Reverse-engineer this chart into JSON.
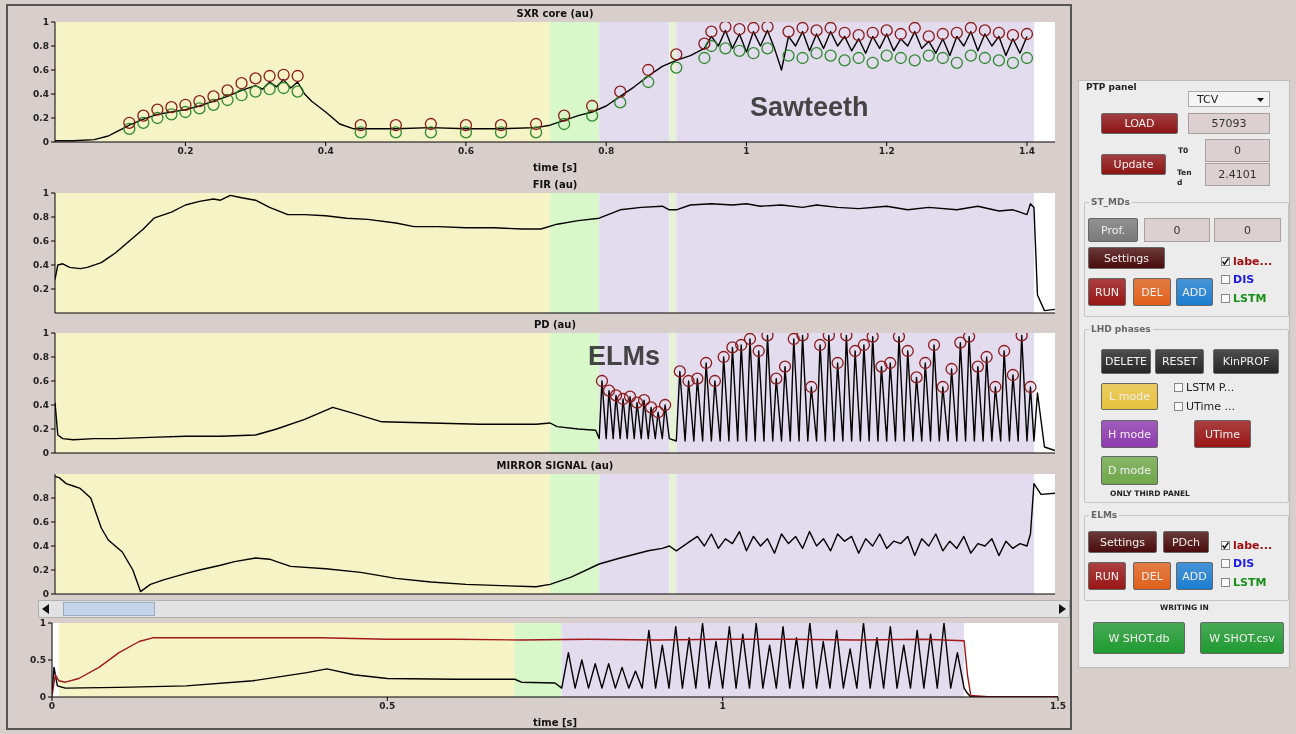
{
  "chart_data": [
    {
      "type": "line",
      "title": "SXR core (au)",
      "xlabel": "time [s]",
      "xlim": [
        0.014,
        1.44
      ],
      "xticks": [
        0.2,
        0.4,
        0.6,
        0.8,
        1,
        1.2,
        1.4
      ],
      "ylim": [
        0,
        1
      ],
      "yticks": [
        0,
        0.2,
        0.4,
        0.6,
        0.8,
        1
      ],
      "bands": [
        {
          "axis": "x",
          "from": 0.014,
          "to": 0.72,
          "color": "#f6f4c6"
        },
        {
          "axis": "x",
          "from": 0.72,
          "to": 0.79,
          "color": "#d9f8c9"
        },
        {
          "axis": "x",
          "from": 0.79,
          "to": 0.89,
          "color": "#e3dbee"
        },
        {
          "axis": "x",
          "from": 0.89,
          "to": 0.9,
          "color": "#e6f2d6"
        },
        {
          "axis": "x",
          "from": 0.9,
          "to": 1.41,
          "color": "#e3dbee"
        }
      ],
      "series": [
        {
          "type": "line",
          "color": "#000000",
          "marker": "none",
          "x": [
            0.014,
            0.04,
            0.07,
            0.09,
            0.1,
            0.11,
            0.12,
            0.14,
            0.16,
            0.18,
            0.2,
            0.22,
            0.24,
            0.26,
            0.28,
            0.3,
            0.31,
            0.32,
            0.33,
            0.34,
            0.35,
            0.36,
            0.37,
            0.38,
            0.4,
            0.42,
            0.44,
            0.5,
            0.55,
            0.6,
            0.65,
            0.7,
            0.72,
            0.74,
            0.76,
            0.78,
            0.8,
            0.82,
            0.84,
            0.86,
            0.88,
            0.9,
            0.92,
            0.94,
            0.95,
            0.96,
            0.97,
            0.98,
            0.99,
            1.0,
            1.01,
            1.02,
            1.03,
            1.04,
            1.05,
            1.06,
            1.07,
            1.08,
            1.09,
            1.1,
            1.11,
            1.12,
            1.13,
            1.14,
            1.15,
            1.16,
            1.17,
            1.18,
            1.19,
            1.2,
            1.21,
            1.22,
            1.23,
            1.24,
            1.25,
            1.26,
            1.27,
            1.28,
            1.29,
            1.3,
            1.31,
            1.32,
            1.33,
            1.34,
            1.35,
            1.36,
            1.37,
            1.38,
            1.39,
            1.4
          ],
          "values": [
            0.01,
            0.01,
            0.02,
            0.05,
            0.08,
            0.11,
            0.14,
            0.19,
            0.23,
            0.25,
            0.27,
            0.3,
            0.34,
            0.38,
            0.43,
            0.47,
            0.44,
            0.5,
            0.46,
            0.52,
            0.45,
            0.5,
            0.4,
            0.34,
            0.25,
            0.15,
            0.11,
            0.11,
            0.12,
            0.11,
            0.11,
            0.12,
            0.14,
            0.18,
            0.22,
            0.25,
            0.3,
            0.38,
            0.46,
            0.55,
            0.63,
            0.68,
            0.72,
            0.78,
            0.88,
            0.8,
            0.93,
            0.78,
            0.9,
            0.75,
            0.92,
            0.8,
            0.93,
            0.78,
            0.6,
            0.88,
            0.8,
            0.92,
            0.76,
            0.9,
            0.78,
            0.92,
            0.8,
            0.88,
            0.76,
            0.86,
            0.74,
            0.88,
            0.78,
            0.9,
            0.76,
            0.86,
            0.8,
            0.92,
            0.78,
            0.84,
            0.74,
            0.86,
            0.72,
            0.88,
            0.8,
            0.92,
            0.76,
            0.9,
            0.8,
            0.88,
            0.72,
            0.86,
            0.74,
            0.88
          ]
        },
        {
          "type": "scatter",
          "color": "#2e8b2e",
          "marker": "circle",
          "x": [
            0.12,
            0.14,
            0.16,
            0.18,
            0.2,
            0.22,
            0.24,
            0.26,
            0.28,
            0.3,
            0.32,
            0.34,
            0.36,
            0.45,
            0.5,
            0.55,
            0.6,
            0.65,
            0.7,
            0.74,
            0.78,
            0.82,
            0.86,
            0.9,
            0.94,
            0.95,
            0.97,
            0.99,
            1.01,
            1.03,
            1.06,
            1.08,
            1.1,
            1.12,
            1.14,
            1.16,
            1.18,
            1.2,
            1.22,
            1.24,
            1.26,
            1.28,
            1.3,
            1.32,
            1.34,
            1.36,
            1.38,
            1.4
          ],
          "values": [
            0.11,
            0.16,
            0.2,
            0.23,
            0.25,
            0.28,
            0.31,
            0.35,
            0.39,
            0.42,
            0.44,
            0.45,
            0.42,
            0.08,
            0.08,
            0.08,
            0.08,
            0.08,
            0.08,
            0.15,
            0.22,
            0.33,
            0.5,
            0.62,
            0.7,
            0.8,
            0.78,
            0.76,
            0.74,
            0.78,
            0.72,
            0.7,
            0.74,
            0.72,
            0.68,
            0.7,
            0.66,
            0.72,
            0.7,
            0.68,
            0.72,
            0.7,
            0.66,
            0.72,
            0.7,
            0.68,
            0.66,
            0.7
          ]
        },
        {
          "type": "scatter",
          "color": "#8b1a1a",
          "marker": "circle",
          "x": [
            0.12,
            0.14,
            0.16,
            0.18,
            0.2,
            0.22,
            0.24,
            0.26,
            0.28,
            0.3,
            0.32,
            0.34,
            0.36,
            0.45,
            0.5,
            0.55,
            0.6,
            0.65,
            0.7,
            0.74,
            0.78,
            0.82,
            0.86,
            0.9,
            0.94,
            0.95,
            0.97,
            0.99,
            1.01,
            1.03,
            1.06,
            1.08,
            1.1,
            1.12,
            1.14,
            1.16,
            1.18,
            1.2,
            1.22,
            1.24,
            1.26,
            1.28,
            1.3,
            1.32,
            1.34,
            1.36,
            1.38,
            1.4
          ],
          "values": [
            0.16,
            0.22,
            0.27,
            0.29,
            0.31,
            0.34,
            0.38,
            0.43,
            0.49,
            0.53,
            0.55,
            0.56,
            0.55,
            0.14,
            0.14,
            0.15,
            0.14,
            0.14,
            0.15,
            0.22,
            0.3,
            0.42,
            0.6,
            0.73,
            0.82,
            0.92,
            0.96,
            0.94,
            0.95,
            0.96,
            0.92,
            0.95,
            0.93,
            0.95,
            0.91,
            0.89,
            0.91,
            0.93,
            0.9,
            0.95,
            0.88,
            0.9,
            0.91,
            0.95,
            0.93,
            0.91,
            0.89,
            0.9
          ]
        }
      ],
      "annotations": [
        "Sawteeth"
      ]
    },
    {
      "type": "line",
      "title": "FIR (au)",
      "xlim": [
        0.014,
        1.44
      ],
      "ylim": [
        0,
        1
      ],
      "yticks": [
        0.2,
        0.4,
        0.6,
        0.8,
        1
      ],
      "tick_labels": "y",
      "bands": [
        {
          "axis": "x",
          "from": 0.014,
          "to": 0.72,
          "color": "#f6f4c6"
        },
        {
          "axis": "x",
          "from": 0.72,
          "to": 0.79,
          "color": "#d9f8c9"
        },
        {
          "axis": "x",
          "from": 0.79,
          "to": 0.89,
          "color": "#e3dbee"
        },
        {
          "axis": "x",
          "from": 0.89,
          "to": 0.9,
          "color": "#e6f2d6"
        },
        {
          "axis": "x",
          "from": 0.9,
          "to": 1.41,
          "color": "#e3dbee"
        }
      ],
      "series": [
        {
          "type": "line",
          "color": "#000000",
          "marker": "none",
          "x": [
            0.014,
            0.018,
            0.025,
            0.035,
            0.05,
            0.06,
            0.08,
            0.1,
            0.12,
            0.14,
            0.155,
            0.18,
            0.2,
            0.22,
            0.24,
            0.25,
            0.264,
            0.28,
            0.3,
            0.32,
            0.346,
            0.37,
            0.4,
            0.43,
            0.46,
            0.5,
            0.526,
            0.56,
            0.6,
            0.64,
            0.68,
            0.707,
            0.73,
            0.76,
            0.79,
            0.82,
            0.85,
            0.88,
            0.89,
            0.9,
            0.92,
            0.95,
            0.98,
            1.0,
            1.02,
            1.05,
            1.08,
            1.1,
            1.13,
            1.16,
            1.2,
            1.23,
            1.26,
            1.3,
            1.33,
            1.36,
            1.38,
            1.4,
            1.405,
            1.41,
            1.415,
            1.425,
            1.44
          ],
          "values": [
            0.28,
            0.4,
            0.41,
            0.38,
            0.37,
            0.38,
            0.42,
            0.5,
            0.6,
            0.7,
            0.79,
            0.84,
            0.9,
            0.93,
            0.95,
            0.94,
            0.98,
            0.96,
            0.94,
            0.88,
            0.82,
            0.82,
            0.81,
            0.79,
            0.78,
            0.75,
            0.72,
            0.72,
            0.71,
            0.71,
            0.7,
            0.7,
            0.74,
            0.77,
            0.79,
            0.86,
            0.88,
            0.89,
            0.86,
            0.86,
            0.9,
            0.91,
            0.9,
            0.91,
            0.89,
            0.9,
            0.88,
            0.9,
            0.88,
            0.87,
            0.89,
            0.86,
            0.88,
            0.86,
            0.89,
            0.85,
            0.86,
            0.82,
            0.91,
            0.88,
            0.15,
            0.02,
            0.03
          ]
        }
      ]
    },
    {
      "type": "line",
      "title": "PD (au)",
      "xlim": [
        0.014,
        1.44
      ],
      "ylim": [
        0,
        1
      ],
      "yticks": [
        0,
        0.2,
        0.4,
        0.6,
        0.8,
        1
      ],
      "tick_labels": "y",
      "bands": [
        {
          "axis": "x",
          "from": 0.014,
          "to": 0.72,
          "color": "#f6f4c6"
        },
        {
          "axis": "x",
          "from": 0.72,
          "to": 0.79,
          "color": "#d9f8c9"
        },
        {
          "axis": "x",
          "from": 0.79,
          "to": 0.89,
          "color": "#e3dbee"
        },
        {
          "axis": "x",
          "from": 0.89,
          "to": 0.9,
          "color": "#e6f2d6"
        },
        {
          "axis": "x",
          "from": 0.9,
          "to": 1.41,
          "color": "#e3dbee"
        }
      ],
      "series": [
        {
          "type": "line",
          "color": "#000000",
          "marker": "none",
          "x": [
            0.014,
            0.018,
            0.025,
            0.04,
            0.07,
            0.1,
            0.15,
            0.2,
            0.25,
            0.3,
            0.33,
            0.37,
            0.41,
            0.44,
            0.48,
            0.55,
            0.62,
            0.7,
            0.72,
            0.73,
            0.76,
            0.785,
            0.79,
            0.794,
            0.8,
            0.804,
            0.81,
            0.814,
            0.82,
            0.824,
            0.83,
            0.834,
            0.84,
            0.844,
            0.85,
            0.854,
            0.86,
            0.864,
            0.87,
            0.874,
            0.88,
            0.884,
            0.89,
            0.9,
            0.905,
            0.9125,
            0.9175,
            0.925,
            0.93,
            0.9375,
            0.9425,
            0.95,
            0.955,
            0.9625,
            0.9675,
            0.975,
            0.98,
            0.9875,
            0.9925,
            1.0,
            1.005,
            1.0125,
            1.0175,
            1.025,
            1.03,
            1.0375,
            1.0425,
            1.05,
            1.055,
            1.0625,
            1.0675,
            1.075,
            1.08,
            1.0875,
            1.0925,
            1.1,
            1.105,
            1.1125,
            1.1175,
            1.125,
            1.13,
            1.1375,
            1.1425,
            1.15,
            1.155,
            1.1625,
            1.1675,
            1.175,
            1.18,
            1.1875,
            1.1925,
            1.2,
            1.205,
            1.2125,
            1.2175,
            1.225,
            1.23,
            1.2375,
            1.2425,
            1.25,
            1.255,
            1.2625,
            1.2675,
            1.275,
            1.28,
            1.2875,
            1.2925,
            1.3,
            1.305,
            1.3125,
            1.3175,
            1.325,
            1.33,
            1.3375,
            1.3425,
            1.35,
            1.355,
            1.3625,
            1.3675,
            1.375,
            1.38,
            1.3875,
            1.3925,
            1.4,
            1.405,
            1.41,
            1.415,
            1.425,
            1.44
          ],
          "values": [
            0.42,
            0.15,
            0.12,
            0.11,
            0.12,
            0.12,
            0.13,
            0.14,
            0.14,
            0.15,
            0.2,
            0.28,
            0.38,
            0.33,
            0.26,
            0.25,
            0.24,
            0.24,
            0.25,
            0.22,
            0.2,
            0.19,
            0.12,
            0.6,
            0.12,
            0.52,
            0.12,
            0.48,
            0.12,
            0.45,
            0.12,
            0.47,
            0.12,
            0.42,
            0.12,
            0.44,
            0.12,
            0.38,
            0.12,
            0.34,
            0.12,
            0.4,
            0.12,
            0.1,
            0.68,
            0.1,
            0.6,
            0.1,
            0.62,
            0.1,
            0.75,
            0.1,
            0.6,
            0.1,
            0.8,
            0.1,
            0.88,
            0.1,
            0.9,
            0.1,
            0.95,
            0.1,
            0.85,
            0.1,
            0.98,
            0.1,
            0.62,
            0.1,
            0.72,
            0.1,
            0.95,
            0.1,
            0.98,
            0.1,
            0.55,
            0.1,
            0.9,
            0.1,
            0.98,
            0.1,
            0.75,
            0.1,
            0.98,
            0.1,
            0.85,
            0.1,
            0.9,
            0.1,
            0.97,
            0.1,
            0.72,
            0.1,
            0.75,
            0.1,
            0.97,
            0.1,
            0.85,
            0.1,
            0.63,
            0.1,
            0.75,
            0.1,
            0.9,
            0.1,
            0.55,
            0.1,
            0.7,
            0.1,
            0.92,
            0.1,
            0.97,
            0.1,
            0.72,
            0.1,
            0.8,
            0.1,
            0.55,
            0.1,
            0.85,
            0.1,
            0.65,
            0.1,
            0.98,
            0.1,
            0.55,
            0.1,
            0.5,
            0.05,
            0.02
          ]
        },
        {
          "type": "scatter",
          "color": "#8b1a1a",
          "marker": "circle",
          "x": [
            0.794,
            0.804,
            0.814,
            0.824,
            0.834,
            0.844,
            0.854,
            0.864,
            0.874,
            0.884,
            0.905,
            0.9175,
            0.93,
            0.9425,
            0.955,
            0.9675,
            0.98,
            0.9925,
            1.005,
            1.0175,
            1.03,
            1.0425,
            1.055,
            1.0675,
            1.08,
            1.0925,
            1.105,
            1.1175,
            1.13,
            1.1425,
            1.155,
            1.1675,
            1.18,
            1.1925,
            1.205,
            1.2175,
            1.23,
            1.2425,
            1.255,
            1.2675,
            1.28,
            1.2925,
            1.305,
            1.3175,
            1.33,
            1.3425,
            1.355,
            1.3675,
            1.38,
            1.3925,
            1.405
          ],
          "values": [
            0.6,
            0.52,
            0.48,
            0.45,
            0.47,
            0.42,
            0.44,
            0.38,
            0.34,
            0.4,
            0.68,
            0.6,
            0.62,
            0.75,
            0.6,
            0.8,
            0.88,
            0.9,
            0.95,
            0.85,
            0.98,
            0.62,
            0.72,
            0.95,
            0.98,
            0.55,
            0.9,
            0.98,
            0.75,
            0.98,
            0.85,
            0.9,
            0.97,
            0.72,
            0.75,
            0.97,
            0.85,
            0.63,
            0.75,
            0.9,
            0.55,
            0.7,
            0.92,
            0.97,
            0.72,
            0.8,
            0.55,
            0.85,
            0.65,
            0.98,
            0.55
          ]
        }
      ],
      "annotations": [
        "ELMs"
      ]
    },
    {
      "type": "line",
      "title": "MIRROR SIGNAL (au)",
      "xlim": [
        0.014,
        1.44
      ],
      "ylim": [
        0,
        1
      ],
      "yticks": [
        0,
        0.2,
        0.4,
        0.6,
        0.8
      ],
      "tick_labels": "y",
      "bands": [
        {
          "axis": "x",
          "from": 0.014,
          "to": 0.72,
          "color": "#f6f4c6"
        },
        {
          "axis": "x",
          "from": 0.72,
          "to": 0.79,
          "color": "#d9f8c9"
        },
        {
          "axis": "x",
          "from": 0.79,
          "to": 0.89,
          "color": "#e3dbee"
        },
        {
          "axis": "x",
          "from": 0.89,
          "to": 0.9,
          "color": "#e6f2d6"
        },
        {
          "axis": "x",
          "from": 0.9,
          "to": 1.41,
          "color": "#e3dbee"
        }
      ],
      "series": [
        {
          "type": "line",
          "color": "#000000",
          "marker": "none",
          "x": [
            0.014,
            0.02,
            0.03,
            0.04,
            0.05,
            0.065,
            0.08,
            0.09,
            0.1,
            0.11,
            0.125,
            0.136,
            0.15,
            0.17,
            0.2,
            0.22,
            0.25,
            0.27,
            0.3,
            0.32,
            0.33,
            0.35,
            0.4,
            0.45,
            0.5,
            0.55,
            0.6,
            0.65,
            0.7,
            0.72,
            0.75,
            0.79,
            0.82,
            0.86,
            0.88,
            0.89,
            0.9,
            0.92,
            0.93,
            0.94,
            0.95,
            0.96,
            0.97,
            0.98,
            0.99,
            1.0,
            1.01,
            1.02,
            1.03,
            1.04,
            1.05,
            1.06,
            1.07,
            1.08,
            1.09,
            1.1,
            1.11,
            1.12,
            1.13,
            1.14,
            1.15,
            1.16,
            1.17,
            1.18,
            1.19,
            1.2,
            1.21,
            1.22,
            1.23,
            1.24,
            1.25,
            1.26,
            1.27,
            1.28,
            1.29,
            1.3,
            1.31,
            1.32,
            1.33,
            1.34,
            1.35,
            1.36,
            1.37,
            1.38,
            1.39,
            1.4,
            1.405,
            1.41,
            1.42,
            1.44
          ],
          "values": [
            0.98,
            0.97,
            0.92,
            0.9,
            0.88,
            0.8,
            0.55,
            0.45,
            0.4,
            0.35,
            0.2,
            0.02,
            0.08,
            0.12,
            0.17,
            0.2,
            0.24,
            0.27,
            0.3,
            0.29,
            0.27,
            0.23,
            0.21,
            0.18,
            0.13,
            0.1,
            0.08,
            0.07,
            0.06,
            0.08,
            0.14,
            0.25,
            0.3,
            0.36,
            0.38,
            0.4,
            0.36,
            0.44,
            0.48,
            0.4,
            0.5,
            0.38,
            0.46,
            0.42,
            0.52,
            0.36,
            0.48,
            0.4,
            0.46,
            0.34,
            0.5,
            0.42,
            0.48,
            0.38,
            0.52,
            0.4,
            0.46,
            0.36,
            0.5,
            0.44,
            0.48,
            0.34,
            0.46,
            0.4,
            0.5,
            0.38,
            0.44,
            0.42,
            0.48,
            0.32,
            0.46,
            0.4,
            0.5,
            0.36,
            0.44,
            0.38,
            0.48,
            0.34,
            0.42,
            0.4,
            0.46,
            0.32,
            0.44,
            0.38,
            0.42,
            0.4,
            0.5,
            0.92,
            0.83,
            0.84
          ]
        }
      ]
    },
    {
      "type": "line",
      "xlabel": "time [s]",
      "xlim": [
        0,
        1.5
      ],
      "xticks": [
        0,
        0.5,
        1,
        1.5
      ],
      "ylim": [
        0,
        1
      ],
      "yticks": [
        0,
        0.5,
        1
      ],
      "bands": [
        {
          "axis": "x",
          "from": 0.01,
          "to": 0.69,
          "color": "#f6f4c6"
        },
        {
          "axis": "x",
          "from": 0.69,
          "to": 0.76,
          "color": "#d9f8c9"
        },
        {
          "axis": "x",
          "from": 0.76,
          "to": 1.36,
          "color": "#e3dbee"
        }
      ],
      "series": [
        {
          "type": "line",
          "color": "#000000",
          "marker": "none",
          "x": [
            0,
            0.003,
            0.008,
            0.02,
            0.1,
            0.2,
            0.3,
            0.38,
            0.41,
            0.45,
            0.5,
            0.6,
            0.69,
            0.7,
            0.75,
            0.76,
            0.77,
            0.78,
            0.79,
            0.8,
            0.81,
            0.82,
            0.83,
            0.84,
            0.85,
            0.86,
            0.87,
            0.88,
            0.89,
            0.9,
            0.91,
            0.92,
            0.93,
            0.94,
            0.95,
            0.96,
            0.97,
            0.98,
            0.99,
            1.0,
            1.01,
            1.02,
            1.03,
            1.04,
            1.05,
            1.06,
            1.07,
            1.08,
            1.09,
            1.1,
            1.11,
            1.12,
            1.13,
            1.14,
            1.15,
            1.16,
            1.17,
            1.18,
            1.19,
            1.2,
            1.21,
            1.22,
            1.23,
            1.24,
            1.25,
            1.26,
            1.27,
            1.28,
            1.29,
            1.3,
            1.31,
            1.32,
            1.33,
            1.34,
            1.35,
            1.36,
            1.365,
            1.37,
            1.5
          ],
          "values": [
            0.05,
            0.4,
            0.15,
            0.12,
            0.13,
            0.15,
            0.22,
            0.33,
            0.38,
            0.3,
            0.25,
            0.24,
            0.24,
            0.2,
            0.19,
            0.12,
            0.6,
            0.12,
            0.5,
            0.12,
            0.45,
            0.12,
            0.45,
            0.12,
            0.4,
            0.12,
            0.35,
            0.12,
            0.9,
            0.12,
            0.7,
            0.12,
            0.95,
            0.12,
            0.8,
            0.12,
            1,
            0.12,
            0.75,
            0.12,
            0.95,
            0.12,
            0.85,
            0.12,
            1,
            0.12,
            0.7,
            0.12,
            0.95,
            0.12,
            0.8,
            0.12,
            1,
            0.12,
            0.75,
            0.12,
            0.9,
            0.12,
            0.65,
            0.12,
            1,
            0.12,
            0.8,
            0.12,
            0.95,
            0.12,
            0.7,
            0.12,
            0.9,
            0.12,
            0.85,
            0.12,
            1,
            0.12,
            0.6,
            0.12,
            0.05,
            0,
            0
          ]
        },
        {
          "type": "line",
          "color": "#a01818",
          "marker": "none",
          "x": [
            0,
            0.005,
            0.01,
            0.02,
            0.04,
            0.07,
            0.1,
            0.13,
            0.15,
            0.2,
            0.3,
            0.4,
            0.5,
            0.6,
            0.7,
            0.8,
            0.9,
            1.0,
            1.1,
            1.2,
            1.3,
            1.36,
            1.365,
            1.37,
            1.4,
            1.5
          ],
          "values": [
            0.02,
            0.3,
            0.22,
            0.2,
            0.25,
            0.4,
            0.6,
            0.75,
            0.8,
            0.8,
            0.8,
            0.8,
            0.78,
            0.78,
            0.77,
            0.78,
            0.77,
            0.78,
            0.78,
            0.77,
            0.78,
            0.76,
            0.3,
            0.02,
            0,
            0
          ]
        }
      ]
    },
    {
      "type": "other",
      "annotations": [
        "PTP panel",
        "TCV",
        "LOAD",
        "57093",
        "Update",
        "T0",
        "0",
        "Tend",
        "2.4101",
        "ST_MDs",
        "Prof.",
        "0",
        "0",
        "Settings",
        "labe...",
        "DIS",
        "LSTM",
        "RUN",
        "DEL",
        "ADD",
        "LHD phases",
        "DELETE",
        "RESET",
        "KinPROF",
        "L mode",
        "LSTM P...",
        "UTime ...",
        "H mode",
        "UTime",
        "D mode",
        "ONLY THIRD PANEL",
        "ELMs",
        "Settings",
        "PDch",
        "labe...",
        "DIS",
        "LSTM",
        "RUN",
        "DEL",
        "ADD",
        "WRITING IN",
        "W SHOT.db",
        "W SHOT.csv"
      ]
    }
  ]
}
